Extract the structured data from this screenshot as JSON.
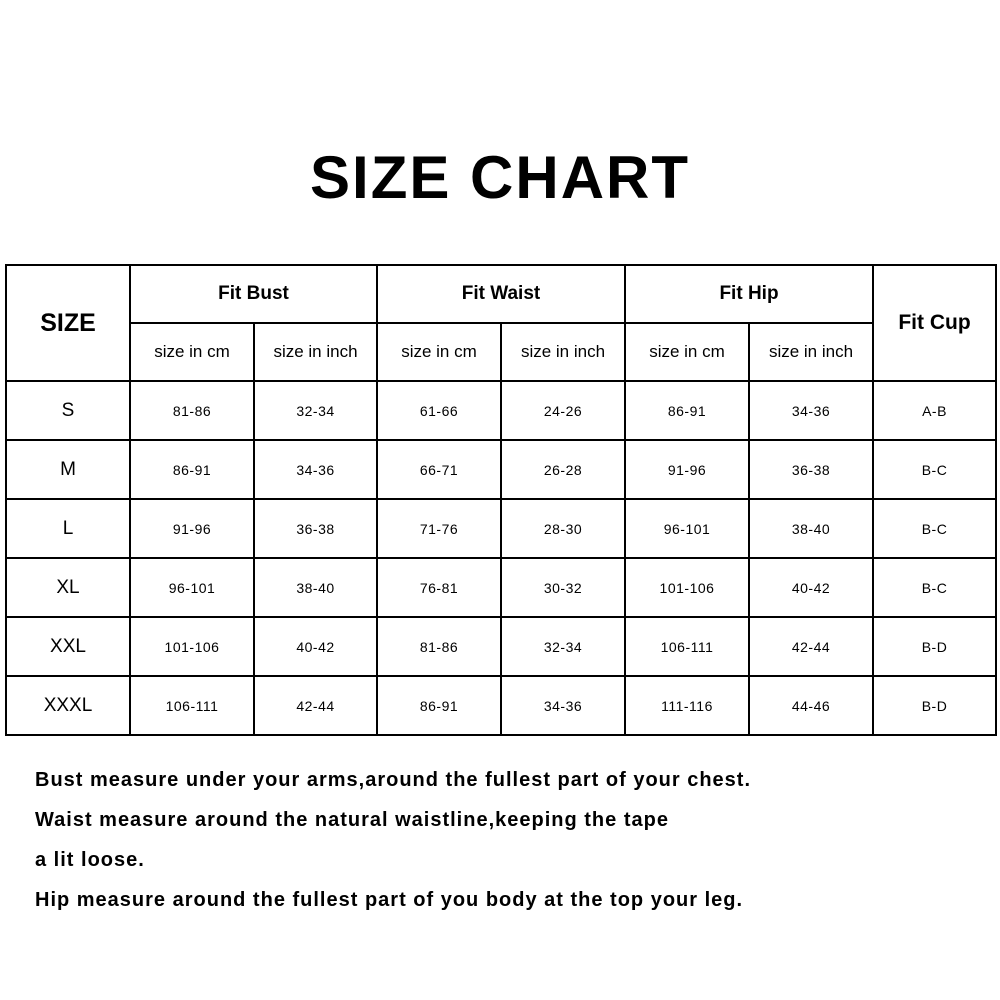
{
  "title": "SIZE CHART",
  "table": {
    "size_header": "SIZE",
    "groups": [
      "Fit Bust",
      "Fit Waist",
      "Fit Hip"
    ],
    "cup_header": "Fit Cup",
    "sub_headers": [
      "size in cm",
      "size in inch",
      "size in cm",
      "size in inch",
      "size in cm",
      "size in inch"
    ],
    "rows": [
      [
        "S",
        "81-86",
        "32-34",
        "61-66",
        "24-26",
        "86-91",
        "34-36",
        "A-B"
      ],
      [
        "M",
        "86-91",
        "34-36",
        "66-71",
        "26-28",
        "91-96",
        "36-38",
        "B-C"
      ],
      [
        "L",
        "91-96",
        "36-38",
        "71-76",
        "28-30",
        "96-101",
        "38-40",
        "B-C"
      ],
      [
        "XL",
        "96-101",
        "38-40",
        "76-81",
        "30-32",
        "101-106",
        "40-42",
        "B-C"
      ],
      [
        "XXL",
        "101-106",
        "40-42",
        "81-86",
        "32-34",
        "106-111",
        "42-44",
        "B-D"
      ],
      [
        "XXXL",
        "106-111",
        "42-44",
        "86-91",
        "34-36",
        "111-116",
        "44-46",
        "B-D"
      ]
    ]
  },
  "notes": [
    "Bust measure under your arms,around the fullest part of your chest.",
    "Waist measure around the natural waistline,keeping the tape",
    "a lit loose.",
    "Hip measure around the fullest part of you body at the top your leg."
  ]
}
